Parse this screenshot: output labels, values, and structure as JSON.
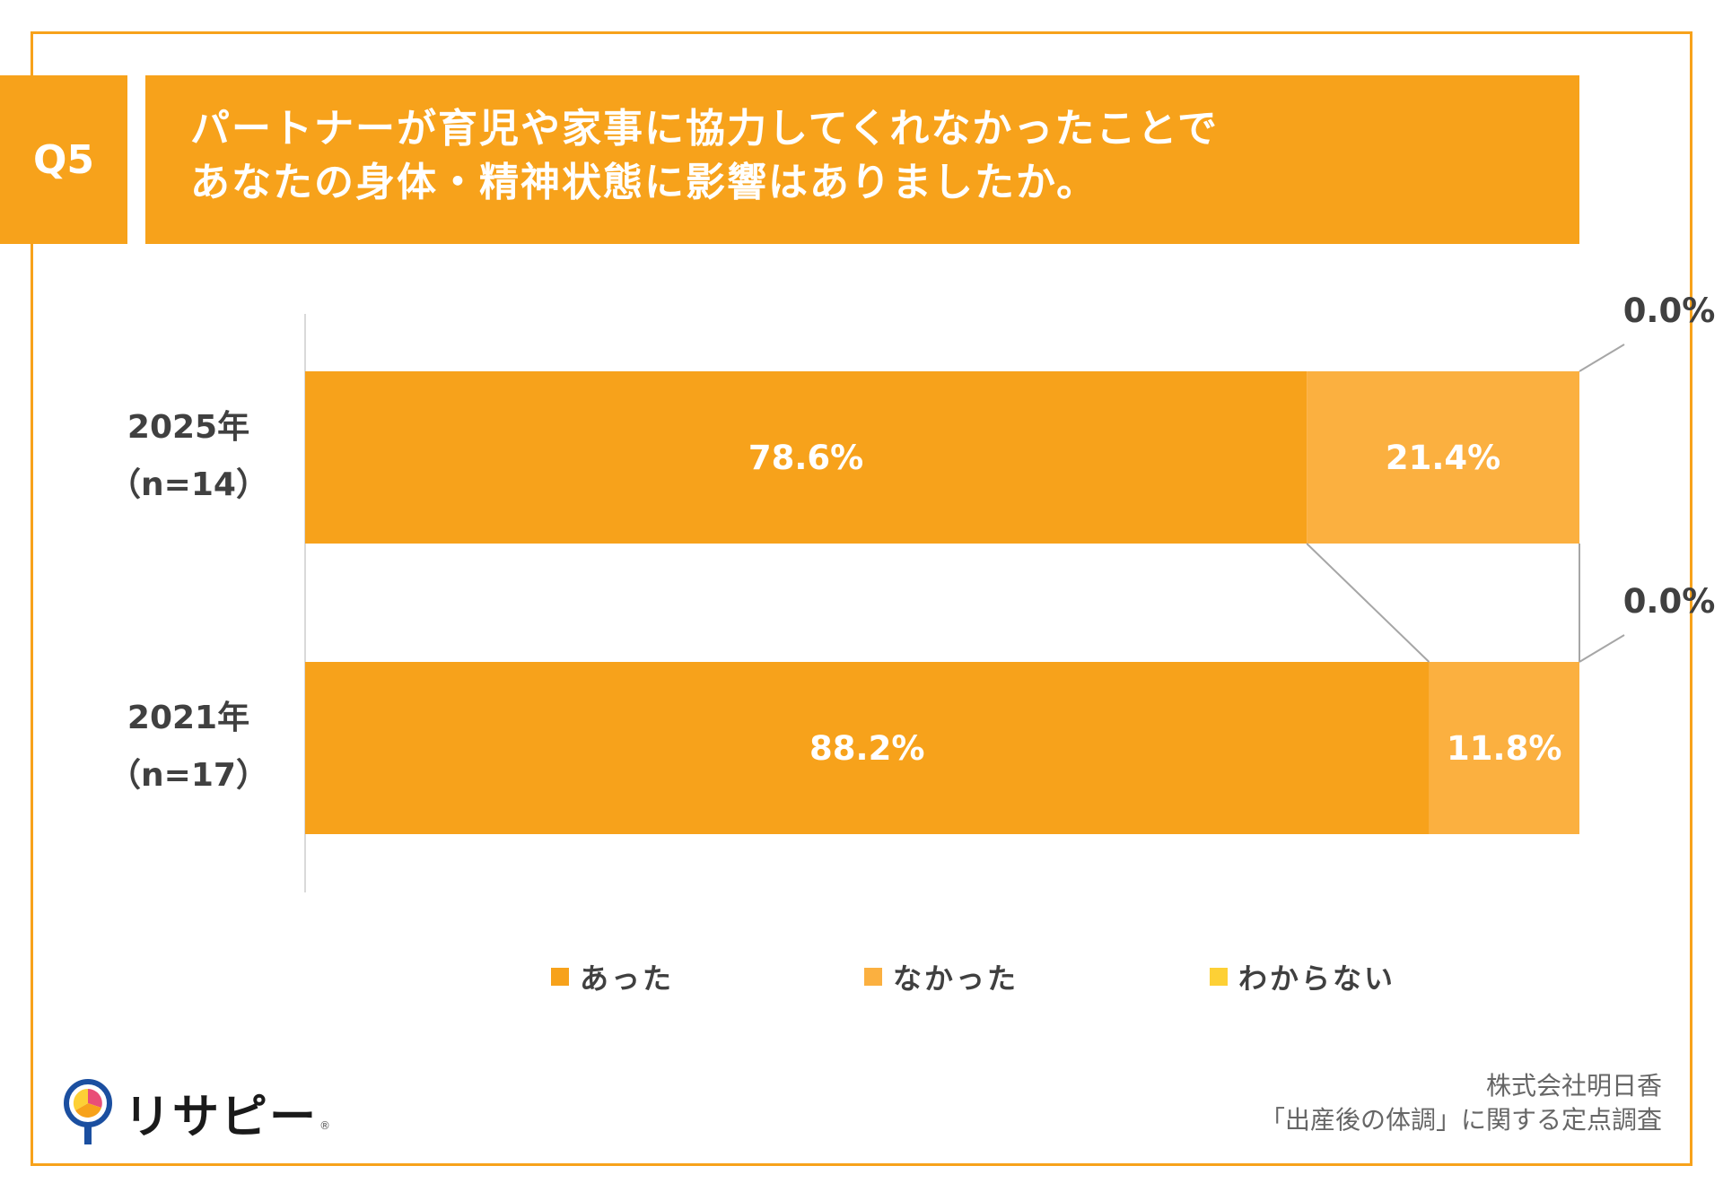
{
  "header": {
    "question_label": "Q5",
    "title_lines": [
      "パートナーが育児や家事に協力してくれなかったことで",
      "あなたの身体・精神状態に影響はありましたか。"
    ]
  },
  "chart_data": {
    "type": "bar",
    "orientation": "horizontal",
    "stacked": true,
    "percent": true,
    "categories": [
      [
        "2025年",
        "（n=14）"
      ],
      [
        "2021年",
        "（n=17）"
      ]
    ],
    "series": [
      {
        "name": "あった",
        "color": "#f7a21b",
        "values": [
          78.6,
          88.2
        ],
        "labels": [
          "78.6%",
          "88.2%"
        ]
      },
      {
        "name": "なかった",
        "color": "#fbb040",
        "values": [
          21.4,
          11.8
        ],
        "labels": [
          "21.4%",
          "11.8%"
        ]
      },
      {
        "name": "わからない",
        "color": "#fdd035",
        "values": [
          0.0,
          0.0
        ],
        "labels": [
          "0.0%",
          "0.0%"
        ]
      }
    ],
    "xlim": [
      0,
      100
    ],
    "legend_position": "bottom",
    "grid": false
  },
  "footer": {
    "logo_text": "リサピー",
    "logo_mark": "®",
    "source_lines": [
      "株式会社明日香",
      "「出産後の体調」に関する定点調査"
    ]
  }
}
